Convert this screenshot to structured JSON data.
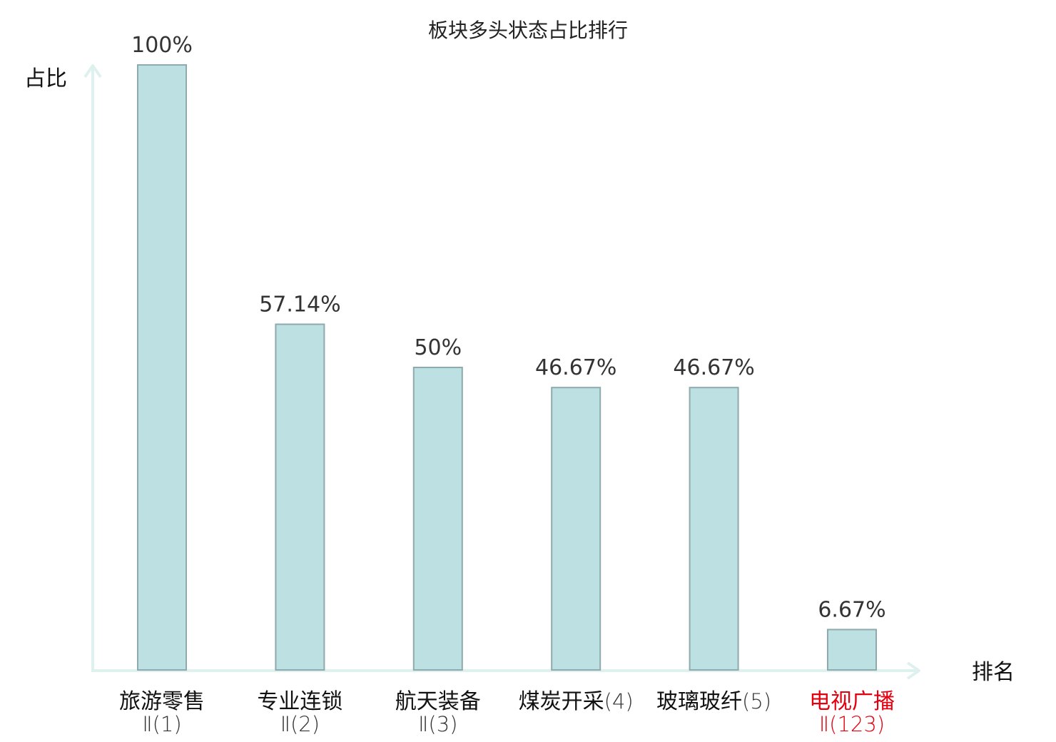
{
  "chart_data": {
    "type": "bar",
    "title": "板块多头状态占比排行",
    "ylabel": "占比",
    "xlabel": "排名",
    "ylim": [
      0,
      100
    ],
    "value_unit": "%",
    "categories": [
      {
        "name": "旅游零售",
        "rank": "Ⅱ(1)",
        "highlight": false
      },
      {
        "name": "专业连锁",
        "rank": "Ⅱ(2)",
        "highlight": false
      },
      {
        "name": "航天装备",
        "rank": "Ⅱ(3)",
        "highlight": false
      },
      {
        "name": "煤炭开采",
        "rank": "(4)",
        "highlight": false
      },
      {
        "name": "玻璃玻纤",
        "rank": "(5)",
        "highlight": false
      },
      {
        "name": "电视广播",
        "rank": "Ⅱ(123)",
        "highlight": true
      }
    ],
    "values": [
      100,
      57.14,
      50,
      46.67,
      46.67,
      6.67
    ],
    "value_labels": [
      "100%",
      "57.14%",
      "50%",
      "46.67%",
      "46.67%",
      "6.67%"
    ],
    "grid": false,
    "colors": {
      "bar_fill": "#bde0e2",
      "bar_stroke": "#8eaaae",
      "axis": "#dff1ef",
      "highlight_text": "#e3000f",
      "normal_text": "#111111",
      "rank_text": "#333333"
    }
  }
}
